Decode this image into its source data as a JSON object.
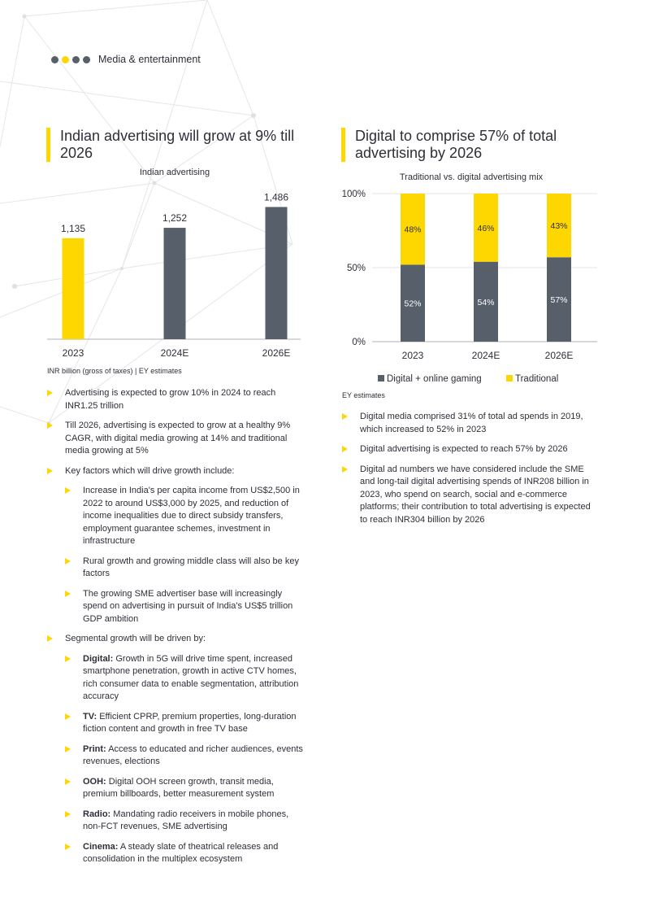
{
  "header": {
    "label": "Media & entertainment"
  },
  "left": {
    "title": "Indian advertising will grow at 9% till 2026",
    "source": "INR billion (gross of taxes) | EY estimates"
  },
  "right": {
    "title": "Digital to comprise 57% of total advertising by 2026",
    "source": "EY estimates"
  },
  "chart_data": [
    {
      "type": "bar",
      "title": "Indian advertising",
      "categories": [
        "2023",
        "2024E",
        "2026E"
      ],
      "values": [
        1135,
        1252,
        1486
      ],
      "value_labels": [
        "1,135",
        "1,252",
        "1,486"
      ],
      "colors": [
        "#ffd700",
        "#565f6a",
        "#565f6a"
      ],
      "ylim": [
        0,
        1600
      ],
      "unit": "INR billion"
    },
    {
      "type": "bar",
      "stacked": true,
      "title": "Traditional vs. digital advertising mix",
      "categories": [
        "2023",
        "2024E",
        "2026E"
      ],
      "yticks": [
        "0%",
        "50%",
        "100%"
      ],
      "ylim": [
        0,
        100
      ],
      "series": [
        {
          "name": "Digital + online gaming",
          "values": [
            52,
            54,
            57
          ],
          "labels": [
            "52%",
            "54%",
            "57%"
          ],
          "color": "#565f6a"
        },
        {
          "name": "Traditional",
          "values": [
            48,
            46,
            43
          ],
          "labels": [
            "48%",
            "46%",
            "43%"
          ],
          "color": "#ffd700"
        }
      ]
    }
  ],
  "bullets_left": [
    {
      "text": "Advertising is expected to grow 10% in 2024 to reach INR1.25 trillion"
    },
    {
      "text": "Till 2026, advertising is expected to grow at a healthy 9% CAGR, with digital media growing at 14% and traditional media growing at 5%"
    },
    {
      "text": "Key factors which will drive growth include:",
      "sub": [
        {
          "text": "Increase in India's per capita income from US$2,500 in 2022 to around US$3,000 by 2025, and reduction of income inequalities due to direct subsidy transfers, employment guarantee schemes, investment in infrastructure"
        },
        {
          "text": "Rural growth and growing middle class will also be key factors"
        },
        {
          "text": "The growing SME advertiser base will increasingly spend on advertising in pursuit of India's US$5 trillion GDP ambition"
        }
      ]
    },
    {
      "text": "Segmental growth will be driven by:",
      "sub": [
        {
          "bold": "Digital:",
          "text": "Growth in 5G will drive time spent, increased smartphone penetration, growth in active CTV homes, rich consumer data to enable segmentation, attribution accuracy"
        },
        {
          "bold": "TV:",
          "text": "Efficient CPRP, premium properties, long-duration fiction content and growth in free TV base"
        },
        {
          "bold": "Print:",
          "text": "Access to educated and richer audiences, events revenues, elections"
        },
        {
          "bold": "OOH:",
          "text": "Digital OOH screen growth, transit media, premium billboards, better measurement system"
        },
        {
          "bold": "Radio:",
          "text": "Mandating radio receivers in mobile phones, non-FCT revenues, SME advertising"
        },
        {
          "bold": "Cinema:",
          "text": "A steady slate of theatrical releases and consolidation in the multiplex ecosystem"
        }
      ]
    }
  ],
  "bullets_right": [
    {
      "text": "Digital media comprised 31% of total ad spends in 2019, which increased to 52% in 2023"
    },
    {
      "text": "Digital advertising is expected to reach 57% by 2026"
    },
    {
      "text": "Digital ad numbers we have considered include the SME and long-tail digital advertising spends of INR208 billion in 2023, who spend on search, social and e-commerce platforms; their contribution to total advertising is expected to reach INR304 billion by 2026"
    }
  ]
}
